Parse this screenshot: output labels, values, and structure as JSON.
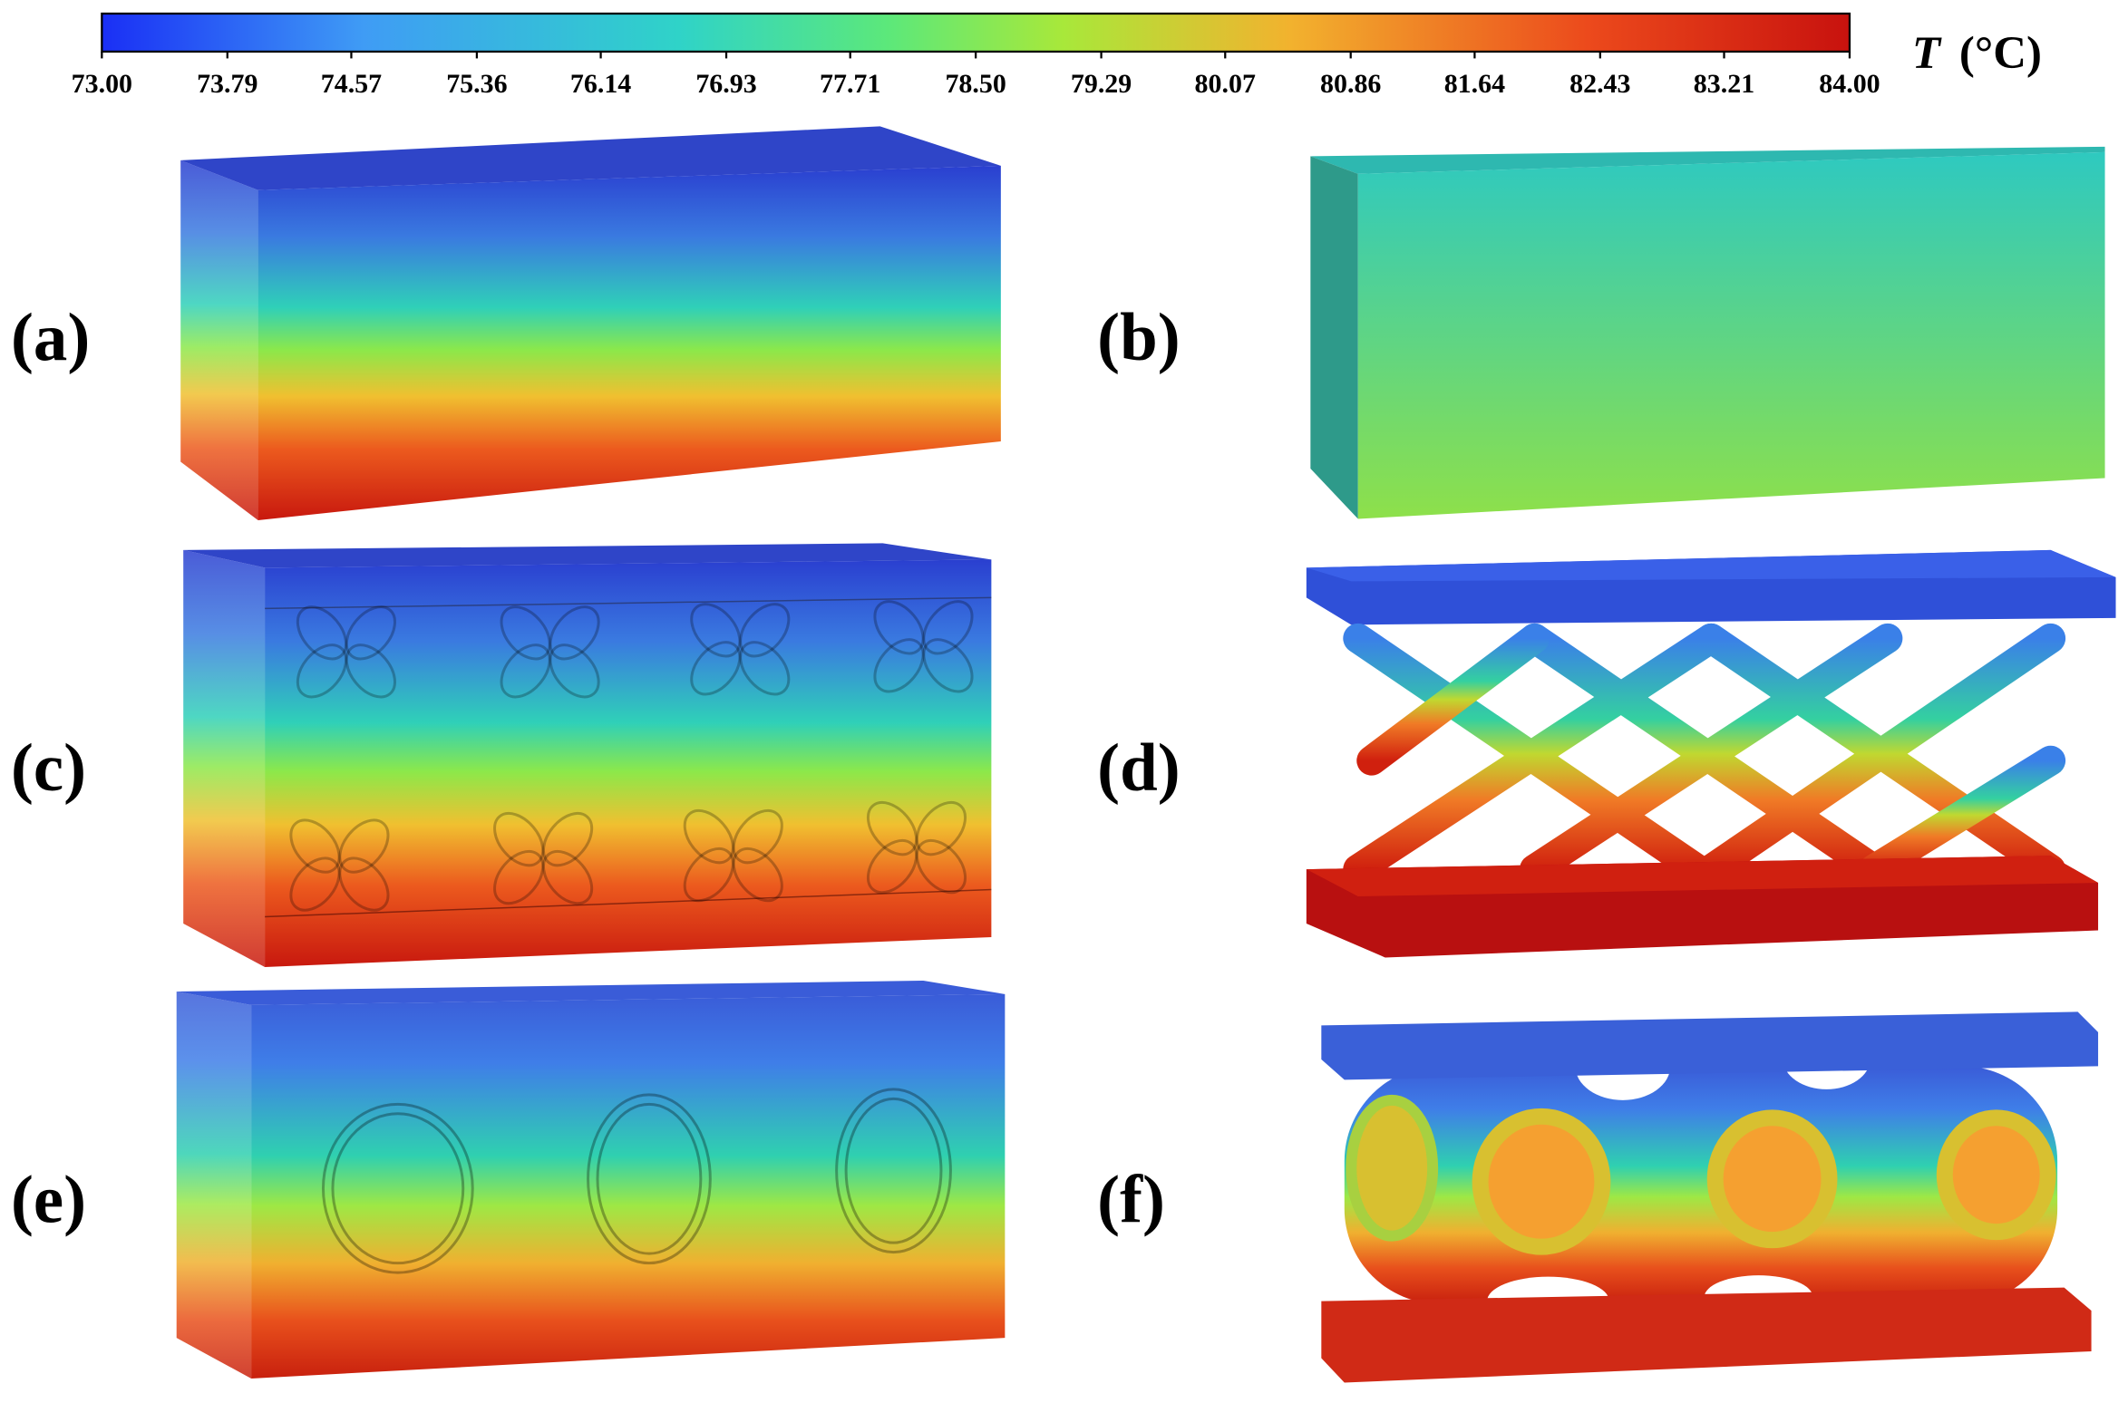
{
  "colorbar": {
    "min": 73,
    "max": 84,
    "label_symbol": "T",
    "label_unit": "(°C)",
    "ticks": [
      {
        "value": 73,
        "label": "73.00"
      },
      {
        "value": 73.79,
        "label": "73.79"
      },
      {
        "value": 74.57,
        "label": "74.57"
      },
      {
        "value": 75.36,
        "label": "75.36"
      },
      {
        "value": 76.14,
        "label": "76.14"
      },
      {
        "value": 76.93,
        "label": "76.93"
      },
      {
        "value": 77.71,
        "label": "77.71"
      },
      {
        "value": 78.5,
        "label": "78.50"
      },
      {
        "value": 79.29,
        "label": "79.29"
      },
      {
        "value": 80.07,
        "label": "80.07"
      },
      {
        "value": 80.86,
        "label": "80.86"
      },
      {
        "value": 81.64,
        "label": "81.64"
      },
      {
        "value": 82.43,
        "label": "82.43"
      },
      {
        "value": 83.21,
        "label": "83.21"
      },
      {
        "value": 84,
        "label": "84.00"
      }
    ]
  },
  "panels": [
    {
      "label": "(a)"
    },
    {
      "label": "(b)"
    },
    {
      "label": "(c)"
    },
    {
      "label": "(d)"
    },
    {
      "label": "(e)"
    },
    {
      "label": "(f)"
    }
  ]
}
